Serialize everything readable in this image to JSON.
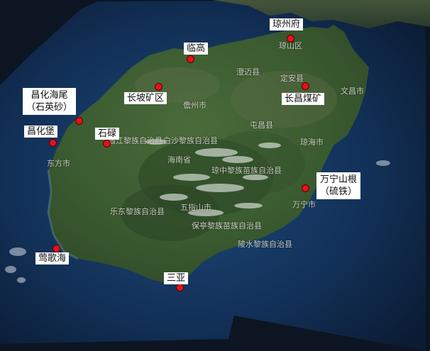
{
  "map": {
    "markers": [
      {
        "id": "qiongzhoufu",
        "label": "琼州府"
      },
      {
        "id": "lingao",
        "label": "临高"
      },
      {
        "id": "changpo",
        "label": "长坡矿区"
      },
      {
        "id": "changjiang-coal",
        "label": "长昌煤矿"
      },
      {
        "id": "changhua-haiwei",
        "label_line1": "昌化海尾",
        "label_line2": "（石英砂）"
      },
      {
        "id": "changhuabao",
        "label": "昌化堡"
      },
      {
        "id": "shilu",
        "label": "石碌"
      },
      {
        "id": "wanning",
        "label_line1": "万宁山根",
        "label_line2": "（硫铁）"
      },
      {
        "id": "yinggehai",
        "label": "莺歌海"
      },
      {
        "id": "sanya",
        "label": "三亚"
      }
    ],
    "overlay_labels": [
      {
        "id": "qiongshan",
        "text": "琼山区"
      },
      {
        "id": "chengmai",
        "text": "澄迈县"
      },
      {
        "id": "dingan",
        "text": "定安县"
      },
      {
        "id": "wenchang",
        "text": "文昌市"
      },
      {
        "id": "danzhou",
        "text": "儋州市"
      },
      {
        "id": "tunchang",
        "text": "屯昌县"
      },
      {
        "id": "baisha",
        "text": "白沙黎族自治县"
      },
      {
        "id": "changjiang-county",
        "text": "昌江黎族自治县"
      },
      {
        "id": "hainan-province",
        "text": "海南省"
      },
      {
        "id": "qionghai",
        "text": "琼海市"
      },
      {
        "id": "qiongzhong",
        "text": "琼中黎族苗族自治县"
      },
      {
        "id": "dongfang",
        "text": "东方市"
      },
      {
        "id": "wuzhishan",
        "text": "五指山市"
      },
      {
        "id": "ledong",
        "text": "乐东黎族自治县"
      },
      {
        "id": "baoting",
        "text": "保亭黎族苗族自治县"
      },
      {
        "id": "wanning-city",
        "text": "万宁市"
      },
      {
        "id": "lingshui",
        "text": "陵水黎族自治县"
      }
    ],
    "colors": {
      "marker": "#e3121a",
      "label_bg": "#ffffff",
      "land": "#3d5e33",
      "sea": "#123057"
    }
  }
}
